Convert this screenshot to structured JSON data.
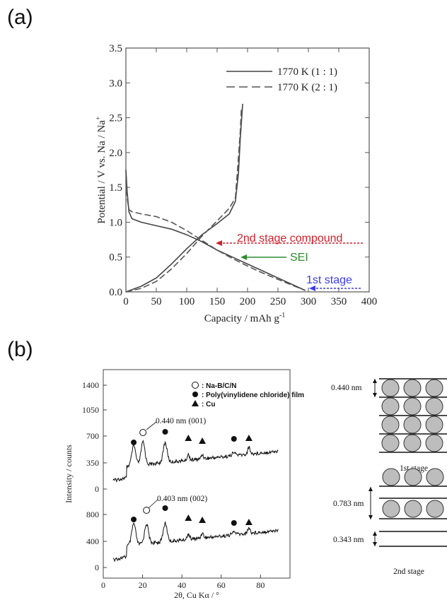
{
  "panel_a": {
    "label": "(a)"
  },
  "panel_b": {
    "label": "(b)"
  },
  "chart_data": [
    {
      "type": "line",
      "xlabel": "Capacity / mAh g",
      "xlabel_sup": "-1",
      "ylabel": "Potential / V vs. Na / Na",
      "ylabel_sup": "+",
      "xlim": [
        0,
        400
      ],
      "ylim": [
        0,
        3.5
      ],
      "xticks": [
        "0",
        "50",
        "100",
        "150",
        "200",
        "250",
        "300",
        "350",
        "400"
      ],
      "yticks": [
        "0.0",
        "0.5",
        "1.0",
        "1.5",
        "2.0",
        "2.5",
        "3.0",
        "3.5"
      ],
      "legend_placement": "top-right",
      "series": [
        {
          "name": "1770 K (1 : 1)",
          "style": "solid",
          "color": "#444444",
          "discharge": [
            [
              0,
              1.75
            ],
            [
              2,
              1.45
            ],
            [
              5,
              1.15
            ],
            [
              10,
              1.05
            ],
            [
              25,
              1.0
            ],
            [
              50,
              0.95
            ],
            [
              75,
              0.9
            ],
            [
              100,
              0.82
            ],
            [
              125,
              0.72
            ],
            [
              150,
              0.6
            ],
            [
              175,
              0.5
            ],
            [
              200,
              0.4
            ],
            [
              225,
              0.3
            ],
            [
              250,
              0.2
            ],
            [
              275,
              0.1
            ],
            [
              295,
              0.02
            ]
          ],
          "charge": [
            [
              0,
              0.0
            ],
            [
              25,
              0.08
            ],
            [
              50,
              0.2
            ],
            [
              75,
              0.4
            ],
            [
              100,
              0.62
            ],
            [
              125,
              0.82
            ],
            [
              150,
              0.98
            ],
            [
              170,
              1.12
            ],
            [
              180,
              1.3
            ],
            [
              185,
              1.7
            ],
            [
              188,
              2.2
            ],
            [
              192,
              2.7
            ]
          ]
        },
        {
          "name": "1770 K (2 : 1)",
          "style": "dashed",
          "color": "#555555",
          "discharge": [
            [
              0,
              1.6
            ],
            [
              2,
              1.35
            ],
            [
              5,
              1.18
            ],
            [
              10,
              1.15
            ],
            [
              25,
              1.12
            ],
            [
              50,
              1.08
            ],
            [
              75,
              1.0
            ],
            [
              100,
              0.88
            ],
            [
              125,
              0.74
            ],
            [
              150,
              0.6
            ],
            [
              175,
              0.48
            ],
            [
              200,
              0.37
            ],
            [
              225,
              0.27
            ],
            [
              250,
              0.18
            ],
            [
              275,
              0.09
            ],
            [
              295,
              0.02
            ]
          ],
          "charge": [
            [
              0,
              0.0
            ],
            [
              25,
              0.05
            ],
            [
              50,
              0.15
            ],
            [
              75,
              0.33
            ],
            [
              100,
              0.55
            ],
            [
              125,
              0.8
            ],
            [
              150,
              1.02
            ],
            [
              170,
              1.2
            ],
            [
              180,
              1.35
            ],
            [
              184,
              1.8
            ],
            [
              188,
              2.3
            ],
            [
              190,
              2.65
            ]
          ]
        }
      ],
      "annotations": [
        {
          "text": "2nd stage compound",
          "color": "#d0202a",
          "y": 0.7
        },
        {
          "text": "SEI",
          "color": "#2e8b2e",
          "y": 0.5
        },
        {
          "text": "1st stage",
          "color": "#3c3cf0",
          "y": 0.05
        }
      ]
    },
    {
      "type": "line",
      "xlabel": "2θ, Cu Kα / °",
      "ylabel": "Intensity / counts",
      "xlim": [
        0,
        95
      ],
      "xticks": [
        "0",
        "20",
        "40",
        "60",
        "80"
      ],
      "yticks_upper": [
        "1400",
        "1050",
        "700",
        "350",
        "0"
      ],
      "yticks_lower": [
        "800",
        "400",
        "0"
      ],
      "legend": [
        {
          "marker": "open-circle",
          "label": ": Na-B/C/N"
        },
        {
          "marker": "filled-circle",
          "label": ": Poly(vinylidene chloride) film"
        },
        {
          "marker": "triangle",
          "label": ": Cu"
        }
      ],
      "series": [
        {
          "name": "upper",
          "peaks": [
            [
              15.5,
              "filled-circle"
            ],
            [
              20.2,
              "open-circle"
            ],
            [
              31.5,
              "filled-circle"
            ],
            [
              43.3,
              "triangle"
            ],
            [
              50.4,
              "triangle"
            ],
            [
              66.5,
              "filled-circle"
            ],
            [
              74.1,
              "triangle"
            ]
          ],
          "peak_label": "0.440 nm (001)"
        },
        {
          "name": "lower",
          "peaks": [
            [
              15.5,
              "filled-circle"
            ],
            [
              22.0,
              "open-circle"
            ],
            [
              31.5,
              "filled-circle"
            ],
            [
              43.3,
              "triangle"
            ],
            [
              50.4,
              "triangle"
            ],
            [
              66.5,
              "filled-circle"
            ],
            [
              74.1,
              "triangle"
            ]
          ],
          "peak_label": "0.403 nm (002)"
        }
      ]
    }
  ],
  "schematic": {
    "first_stage": {
      "spacing": "0.440 nm",
      "label": "1st stage"
    },
    "second_stage": {
      "spacing_big": "0.783 nm",
      "spacing_small": "0.343 nm",
      "label": "2nd stage"
    }
  }
}
